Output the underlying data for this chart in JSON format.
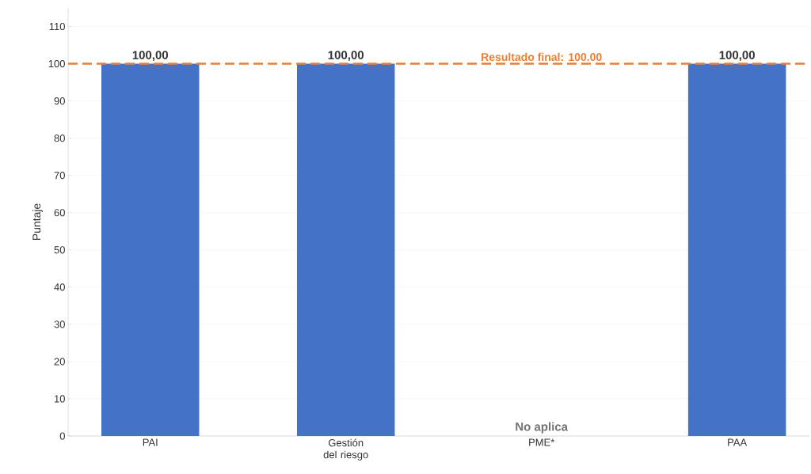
{
  "chart_data": {
    "type": "bar",
    "ylabel": "Puntaje",
    "categories": [
      "PAI",
      "Gestión del riesgo",
      "PME*",
      "PAA"
    ],
    "values": [
      100,
      100,
      null,
      100
    ],
    "color": "#4472c4",
    "value_labels": [
      "100,00",
      "100,00",
      null,
      "100,00"
    ],
    "ylim": [
      0,
      115
    ],
    "yticks": [
      0,
      10,
      20,
      30,
      40,
      50,
      60,
      70,
      80,
      90,
      100,
      110
    ],
    "grid": "y",
    "ref_lines": [
      {
        "axis": "y",
        "value": 100,
        "label": "Resultado final: 100.00",
        "color": "#ed7d31",
        "line_style": "dashed"
      }
    ],
    "annotations": [
      "No aplica"
    ]
  }
}
